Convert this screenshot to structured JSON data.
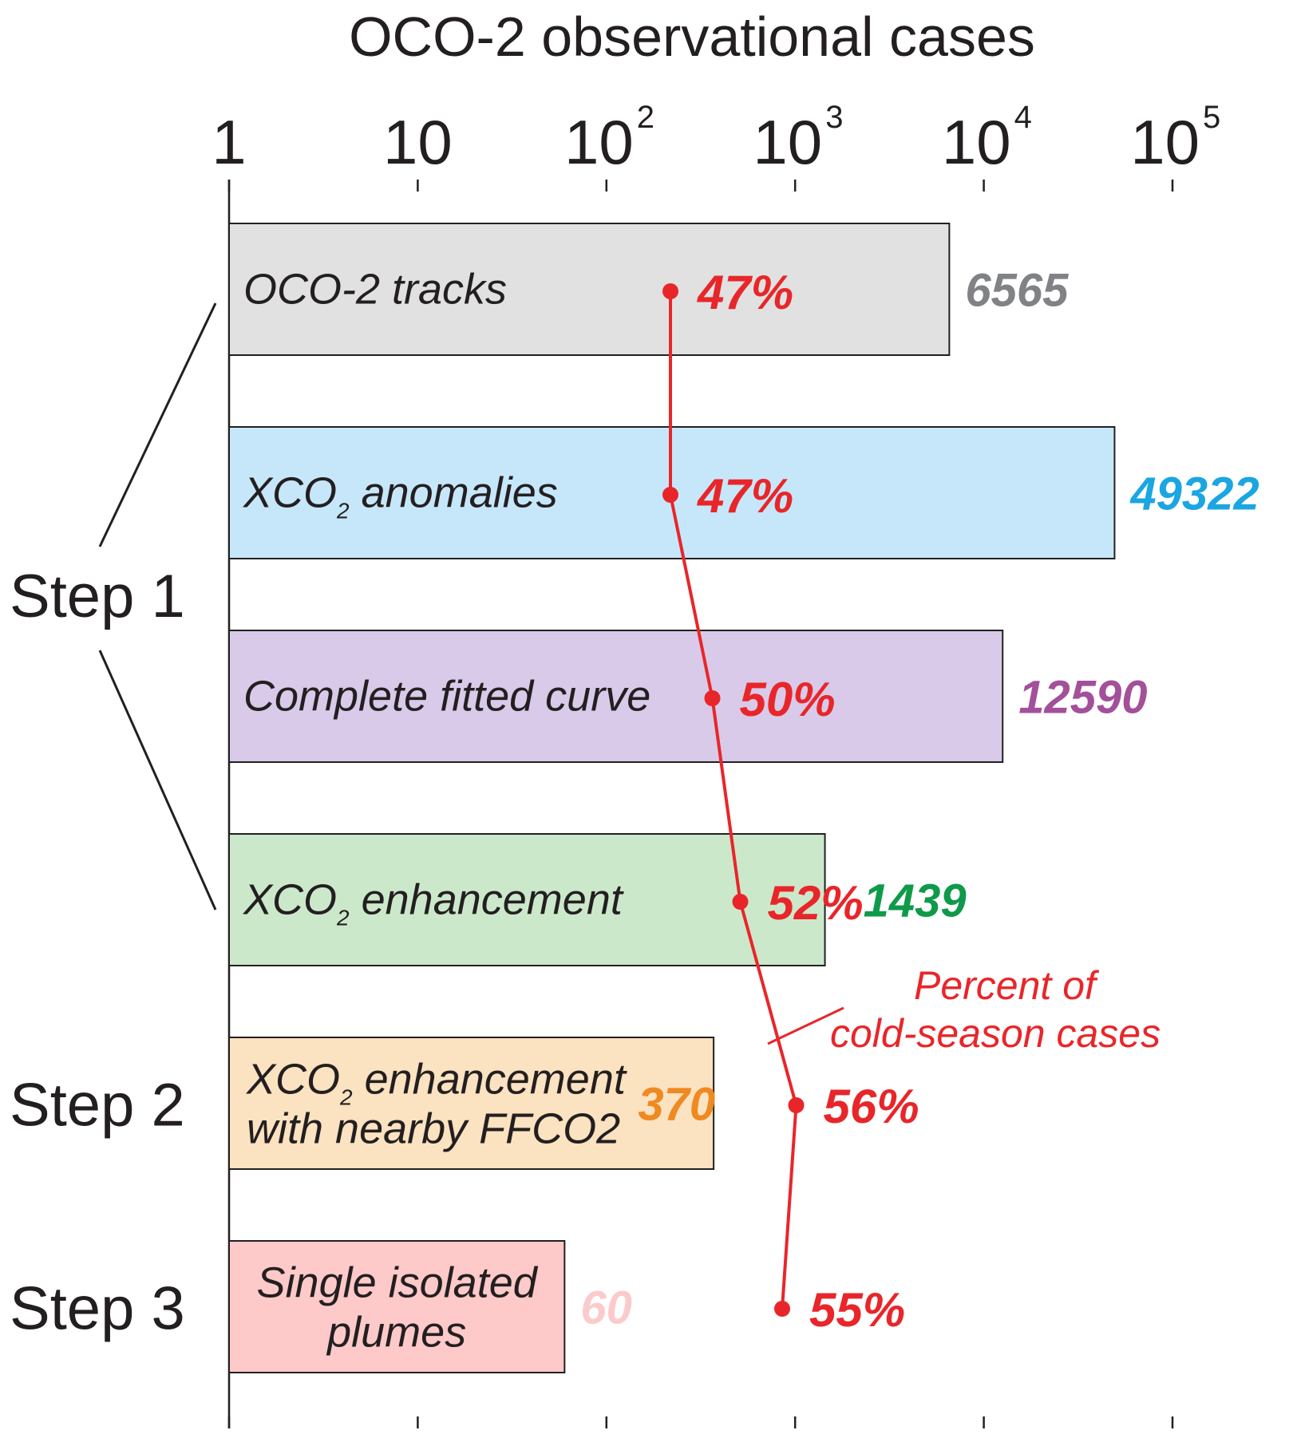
{
  "chart_data": {
    "type": "bar",
    "orientation": "horizontal",
    "title": "OCO-2 observational cases",
    "x_scale": "log",
    "xlim": [
      1,
      100000
    ],
    "x_ticks": [
      {
        "value": 1,
        "base": "1",
        "exp": ""
      },
      {
        "value": 10,
        "base": "10",
        "exp": ""
      },
      {
        "value": 100,
        "base": "10",
        "exp": "2"
      },
      {
        "value": 1000,
        "base": "10",
        "exp": "3"
      },
      {
        "value": 10000,
        "base": "10",
        "exp": "4"
      },
      {
        "value": 100000,
        "base": "10",
        "exp": "5"
      }
    ],
    "categories": [
      {
        "parts": [
          {
            "t": "OCO-2 tracks"
          }
        ]
      },
      {
        "parts": [
          {
            "t": "XCO"
          },
          {
            "t": "2",
            "sub": true
          },
          {
            "t": " anomalies"
          }
        ]
      },
      {
        "parts": [
          {
            "t": "Complete fitted curve"
          }
        ]
      },
      {
        "parts": [
          {
            "t": "XCO"
          },
          {
            "t": "2",
            "sub": true
          },
          {
            "t": " enhancement"
          }
        ]
      },
      {
        "lines": [
          [
            {
              "t": "XCO"
            },
            {
              "t": "2",
              "sub": true
            },
            {
              "t": " enhancement"
            }
          ],
          [
            {
              "t": "with nearby FFCO2"
            }
          ]
        ]
      },
      {
        "lines": [
          [
            {
              "t": "Single isolated"
            }
          ],
          [
            {
              "t": "plumes"
            }
          ]
        ]
      }
    ],
    "values": [
      6565,
      49322,
      12590,
      1439,
      370,
      60
    ],
    "value_labels": [
      "6565",
      "49322",
      "12590",
      "1439",
      "370",
      "60"
    ],
    "bar_colors": [
      "#e1e1e1",
      "#c6e7fa",
      "#d8cae8",
      "#cce8cb",
      "#fbe2c0",
      "#fdc9c9"
    ],
    "value_label_colors": [
      "#808285",
      "#1ba6e2",
      "#a3509a",
      "#0f9a4a",
      "#ee8a21",
      "#fbcbcb"
    ],
    "series": [
      {
        "name": "Percent of cold-season cases",
        "values": [
          47,
          47,
          50,
          52,
          56,
          55
        ],
        "labels": [
          "47%",
          "47%",
          "50%",
          "52%",
          "56%",
          "55%"
        ],
        "color": "#e8262a"
      }
    ],
    "annotation": {
      "lines": [
        "Percent of",
        "cold-season cases"
      ],
      "color": "#e8262a"
    },
    "steps": [
      {
        "label": "Step 1",
        "covers": [
          0,
          3
        ]
      },
      {
        "label": "Step 2",
        "covers": [
          4,
          4
        ]
      },
      {
        "label": "Step 3",
        "covers": [
          5,
          5
        ]
      }
    ]
  }
}
